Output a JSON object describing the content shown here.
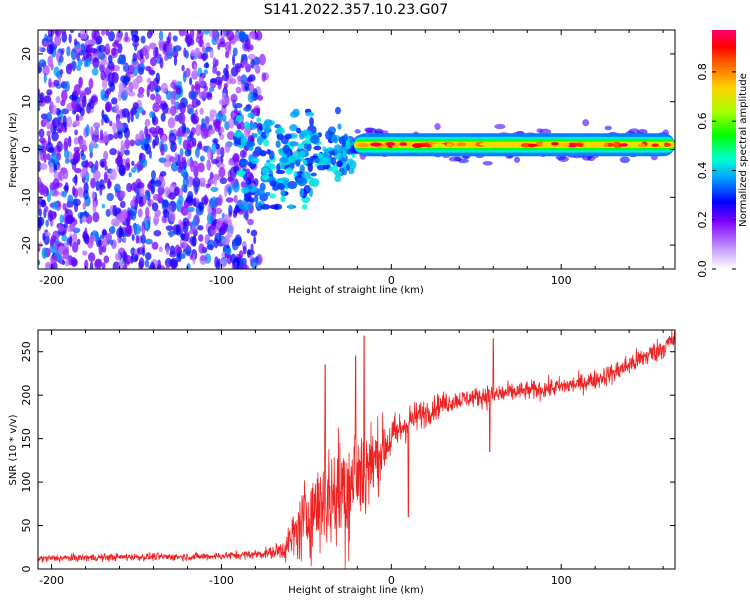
{
  "title": "S141.2022.357.10.23.G07",
  "chart_data": [
    {
      "type": "heatmap",
      "panel": "spectrogram",
      "xlabel": "Height of straight line (km)",
      "ylabel": "Frequency (Hz)",
      "xlim": [
        -208,
        167
      ],
      "ylim": [
        -25,
        25
      ],
      "xticks": [
        -200,
        -100,
        0,
        100
      ],
      "yticks": [
        -20,
        -10,
        0,
        10,
        20
      ],
      "colorbar": {
        "label": "Normalized spectral amplitude",
        "range": [
          0,
          0.97
        ],
        "ticks": [
          0.0,
          0.2,
          0.4,
          0.6,
          0.8
        ]
      },
      "description_regions": [
        {
          "x_range": [
            -208,
            -73
          ],
          "freq_range": [
            -25,
            25
          ],
          "amplitude_range": [
            0.05,
            0.3
          ],
          "pattern": "noise"
        },
        {
          "x_range": [
            -90,
            -22
          ],
          "freq_range": [
            -12,
            10
          ],
          "amplitude_range": [
            0.2,
            0.4
          ],
          "pattern": "scattered blobs"
        },
        {
          "x_range": [
            -22,
            167
          ],
          "freq_center": 1.0,
          "freq_halfwidth": 1.5,
          "amplitude_range": [
            0.6,
            0.97
          ],
          "pattern": "narrow ridge"
        }
      ]
    },
    {
      "type": "line",
      "panel": "snr",
      "xlabel": "Height of straight line (km)",
      "ylabel": "SNR (10 * v/v)",
      "xlim": [
        -208,
        167
      ],
      "ylim": [
        0,
        275
      ],
      "xticks": [
        -200,
        -100,
        0,
        100
      ],
      "yticks": [
        0,
        50,
        100,
        150,
        200,
        250
      ],
      "series": [
        {
          "color": "#ee2222",
          "x": [
            -208,
            -180,
            -150,
            -120,
            -100,
            -80,
            -70,
            -62,
            -55,
            -48,
            -40,
            -33,
            -27,
            -20,
            -15,
            -10,
            -5,
            0,
            5,
            10,
            20,
            30,
            40,
            50,
            60,
            70,
            80,
            90,
            100,
            110,
            120,
            130,
            140,
            150,
            160,
            167
          ],
          "y": [
            12,
            13,
            14,
            14,
            15,
            17,
            19,
            25,
            45,
            65,
            80,
            85,
            95,
            105,
            115,
            125,
            140,
            150,
            160,
            170,
            180,
            190,
            195,
            198,
            200,
            203,
            205,
            207,
            210,
            213,
            218,
            225,
            235,
            245,
            255,
            265
          ],
          "noise_amplitude": [
            4,
            4,
            4,
            4,
            4,
            5,
            6,
            15,
            35,
            45,
            55,
            60,
            75,
            70,
            55,
            40,
            30,
            25,
            20,
            18,
            15,
            12,
            10,
            10,
            14,
            10,
            10,
            10,
            10,
            10,
            10,
            11,
            12,
            12,
            12,
            12
          ],
          "peaks": [
            {
              "x": -16,
              "y": 268
            },
            {
              "x": -21,
              "y": 245
            },
            {
              "x": -39,
              "y": 235
            },
            {
              "x": 60,
              "y": 265
            },
            {
              "x": 58,
              "y": 135
            },
            {
              "x": 10,
              "y": 60
            }
          ]
        }
      ]
    }
  ],
  "colors": {
    "colormap": [
      "#ffffff",
      "#8000ff",
      "#0000ff",
      "#00a0ff",
      "#00ffd0",
      "#00ff00",
      "#aaff00",
      "#ffd000",
      "#ff6000",
      "#ff0000",
      "#ff0070"
    ],
    "axis": "#000000",
    "background": "#ffffff"
  }
}
